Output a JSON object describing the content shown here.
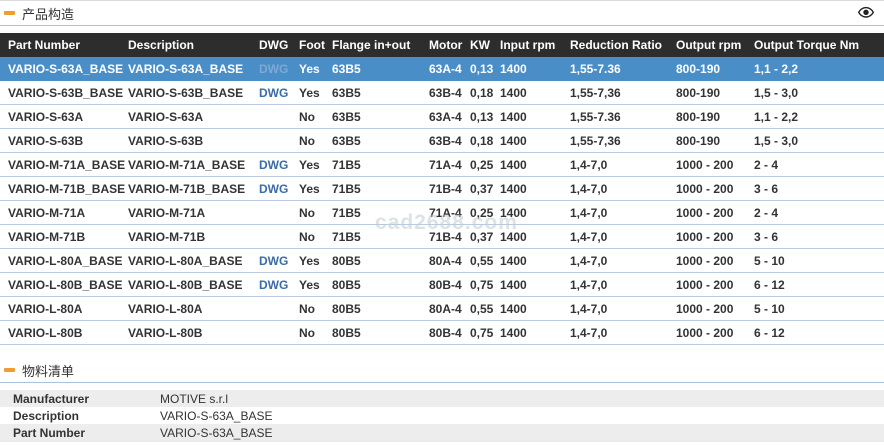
{
  "page": {
    "watermark": "cad2688.com",
    "sections": {
      "product_structure": {
        "title": "产品构造"
      },
      "bill_of_materials": {
        "title": "物料清单"
      }
    }
  },
  "colors": {
    "accent_orange": "#f09c2e",
    "header_bar": "#2d2d2d",
    "selected_row": "#4a8ec7",
    "link_blue": "#3a6ca8",
    "row_separator": "#b9cade"
  },
  "table": {
    "columns": [
      "Part Number",
      "Description",
      "DWG",
      "Foot",
      "Flange in+out",
      "Motor",
      "KW",
      "Input rpm",
      "Reduction Ratio",
      "Output rpm",
      "Output Torque Nm"
    ],
    "rows": [
      {
        "part_number": "VARIO-S-63A_BASE",
        "description": "VARIO-S-63A_BASE",
        "dwg": "DWG",
        "foot": "Yes",
        "flange_in_out": "63B5",
        "motor": "63A-4",
        "kw": "0,13",
        "input_rpm": "1400",
        "reduction_ratio": "1,55-7.36",
        "output_rpm": "800-190",
        "output_torque_nm": "1,1 - 2,2",
        "selected": true
      },
      {
        "part_number": "VARIO-S-63B_BASE",
        "description": "VARIO-S-63B_BASE",
        "dwg": "DWG",
        "foot": "Yes",
        "flange_in_out": "63B5",
        "motor": "63B-4",
        "kw": "0,18",
        "input_rpm": "1400",
        "reduction_ratio": "1,55-7,36",
        "output_rpm": "800-190",
        "output_torque_nm": "1,5 - 3,0",
        "selected": false
      },
      {
        "part_number": "VARIO-S-63A",
        "description": "VARIO-S-63A",
        "dwg": "",
        "foot": "No",
        "flange_in_out": "63B5",
        "motor": "63A-4",
        "kw": "0,13",
        "input_rpm": "1400",
        "reduction_ratio": "1,55-7.36",
        "output_rpm": "800-190",
        "output_torque_nm": "1,1 - 2,2",
        "selected": false
      },
      {
        "part_number": "VARIO-S-63B",
        "description": "VARIO-S-63B",
        "dwg": "",
        "foot": "No",
        "flange_in_out": "63B5",
        "motor": "63B-4",
        "kw": "0,18",
        "input_rpm": "1400",
        "reduction_ratio": "1,55-7,36",
        "output_rpm": "800-190",
        "output_torque_nm": "1,5 - 3,0",
        "selected": false
      },
      {
        "part_number": "VARIO-M-71A_BASE",
        "description": "VARIO-M-71A_BASE",
        "dwg": "DWG",
        "foot": "Yes",
        "flange_in_out": "71B5",
        "motor": "71A-4",
        "kw": "0,25",
        "input_rpm": "1400",
        "reduction_ratio": "1,4-7,0",
        "output_rpm": "1000 - 200",
        "output_torque_nm": "2 - 4",
        "selected": false
      },
      {
        "part_number": "VARIO-M-71B_BASE",
        "description": "VARIO-M-71B_BASE",
        "dwg": "DWG",
        "foot": "Yes",
        "flange_in_out": "71B5",
        "motor": "71B-4",
        "kw": "0,37",
        "input_rpm": "1400",
        "reduction_ratio": "1,4-7,0",
        "output_rpm": "1000 - 200",
        "output_torque_nm": "3 - 6",
        "selected": false
      },
      {
        "part_number": "VARIO-M-71A",
        "description": "VARIO-M-71A",
        "dwg": "",
        "foot": "No",
        "flange_in_out": "71B5",
        "motor": "71A-4",
        "kw": "0,25",
        "input_rpm": "1400",
        "reduction_ratio": "1,4-7,0",
        "output_rpm": "1000 - 200",
        "output_torque_nm": "2 - 4",
        "selected": false
      },
      {
        "part_number": "VARIO-M-71B",
        "description": "VARIO-M-71B",
        "dwg": "",
        "foot": "No",
        "flange_in_out": "71B5",
        "motor": "71B-4",
        "kw": "0,37",
        "input_rpm": "1400",
        "reduction_ratio": "1,4-7,0",
        "output_rpm": "1000 - 200",
        "output_torque_nm": "3 - 6",
        "selected": false
      },
      {
        "part_number": "VARIO-L-80A_BASE",
        "description": "VARIO-L-80A_BASE",
        "dwg": "DWG",
        "foot": "Yes",
        "flange_in_out": "80B5",
        "motor": "80A-4",
        "kw": "0,55",
        "input_rpm": "1400",
        "reduction_ratio": "1,4-7,0",
        "output_rpm": "1000 - 200",
        "output_torque_nm": "5 - 10",
        "selected": false
      },
      {
        "part_number": "VARIO-L-80B_BASE",
        "description": "VARIO-L-80B_BASE",
        "dwg": "DWG",
        "foot": "Yes",
        "flange_in_out": "80B5",
        "motor": "80B-4",
        "kw": "0,75",
        "input_rpm": "1400",
        "reduction_ratio": "1,4-7,0",
        "output_rpm": "1000 - 200",
        "output_torque_nm": "6 - 12",
        "selected": false
      },
      {
        "part_number": "VARIO-L-80A",
        "description": "VARIO-L-80A",
        "dwg": "",
        "foot": "No",
        "flange_in_out": "80B5",
        "motor": "80A-4",
        "kw": "0,55",
        "input_rpm": "1400",
        "reduction_ratio": "1,4-7,0",
        "output_rpm": "1000 - 200",
        "output_torque_nm": "5 - 10",
        "selected": false
      },
      {
        "part_number": "VARIO-L-80B",
        "description": "VARIO-L-80B",
        "dwg": "",
        "foot": "No",
        "flange_in_out": "80B5",
        "motor": "80B-4",
        "kw": "0,75",
        "input_rpm": "1400",
        "reduction_ratio": "1,4-7,0",
        "output_rpm": "1000 - 200",
        "output_torque_nm": "6 - 12",
        "selected": false
      }
    ]
  },
  "bom": {
    "rows": [
      {
        "label": "Manufacturer",
        "value": "MOTIVE s.r.l"
      },
      {
        "label": "Description",
        "value": "VARIO-S-63A_BASE"
      },
      {
        "label": "Part Number",
        "value": "VARIO-S-63A_BASE"
      }
    ]
  }
}
